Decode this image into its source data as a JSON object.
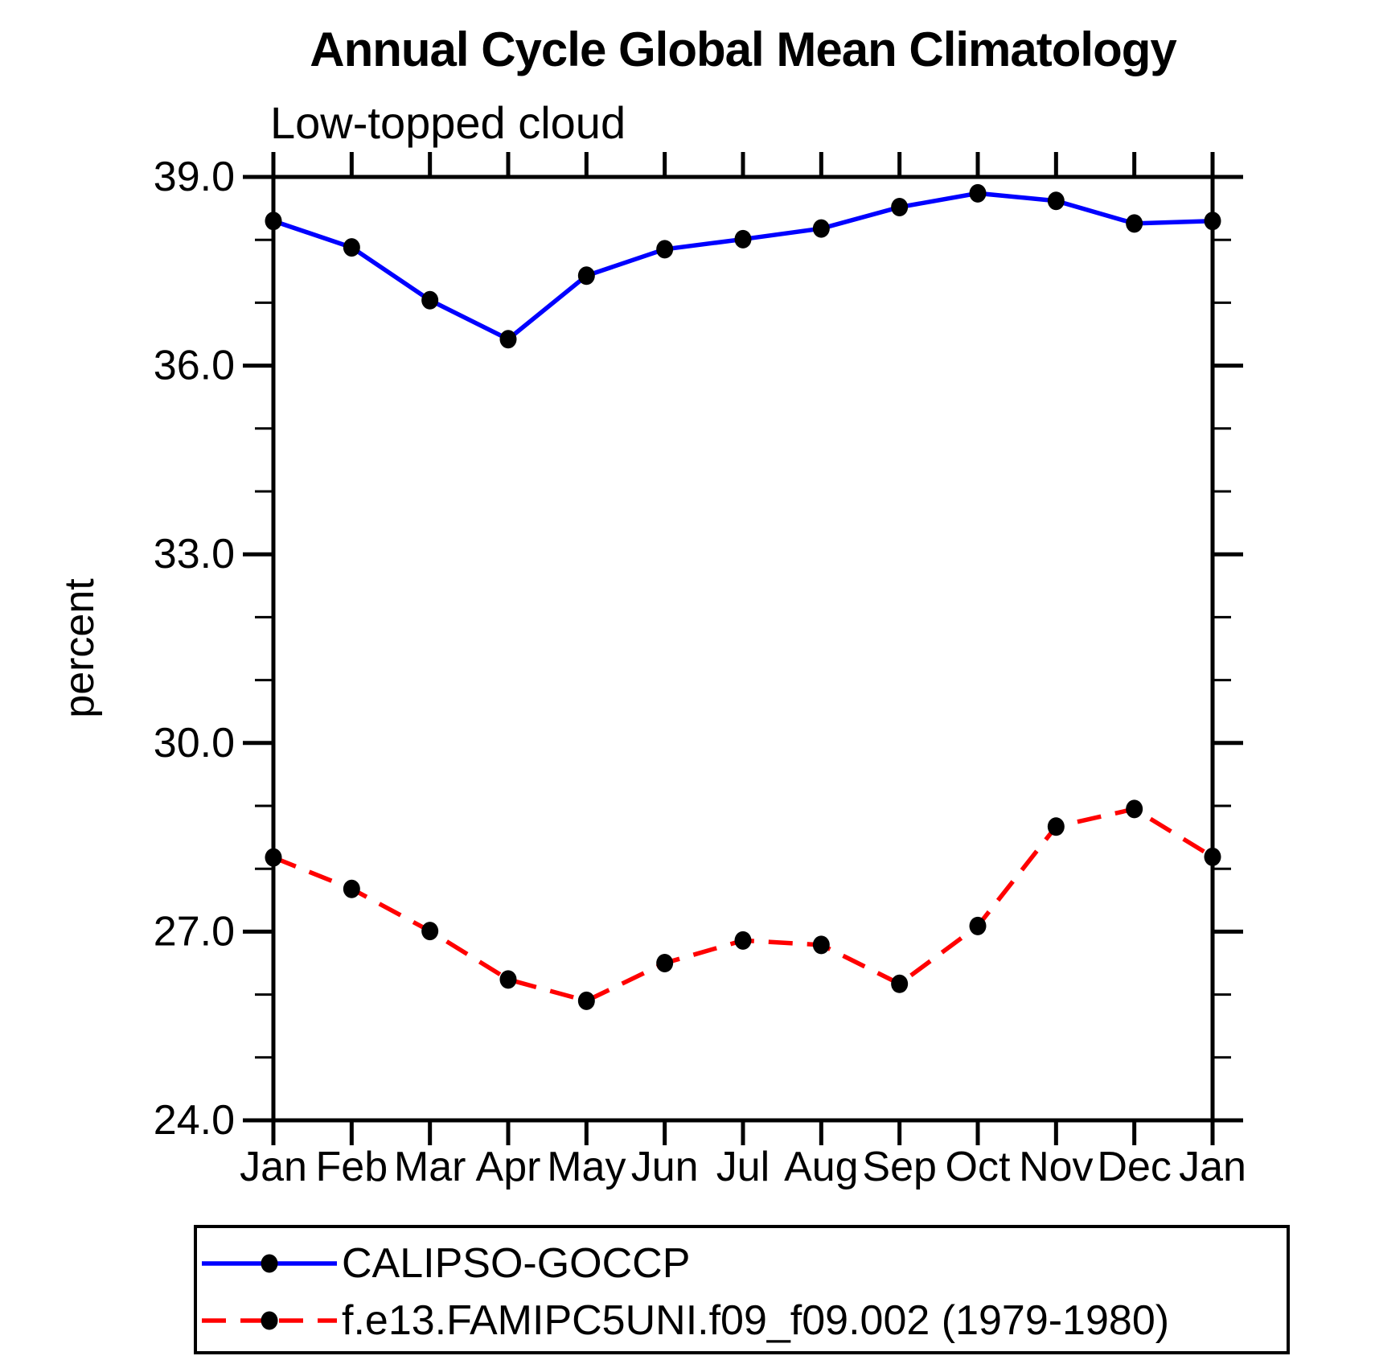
{
  "title": "Annual Cycle Global Mean Climatology",
  "subtitle": "Low-topped cloud",
  "axes": {
    "y_label": "percent",
    "y_tick_labels": [
      "24.0",
      "27.0",
      "30.0",
      "33.0",
      "36.0",
      "39.0"
    ],
    "x_tick_labels": [
      "Jan",
      "Feb",
      "Mar",
      "Apr",
      "May",
      "Jun",
      "Jul",
      "Aug",
      "Sep",
      "Oct",
      "Nov",
      "Dec",
      "Jan"
    ]
  },
  "legend": {
    "entries": [
      {
        "label": "CALIPSO-GOCCP",
        "line_style": "solid",
        "color": "#0000ff",
        "marker": "black-dot"
      },
      {
        "label": "f.e13.FAMIPC5UNI.f09_f09.002 (1979-1980)",
        "line_style": "dashed",
        "color": "#ff0000",
        "marker": "black-dot"
      }
    ]
  },
  "colors": {
    "series1": "#0000ff",
    "series2": "#ff0000",
    "marker": "#000000",
    "axis": "#000000",
    "subtitle_text": "#1a1a1a",
    "background": "#ffffff"
  },
  "chart_data": {
    "type": "line",
    "title": "Annual Cycle Global Mean Climatology",
    "subtitle": "Low-topped cloud",
    "xlabel": "",
    "ylabel": "percent",
    "categories": [
      "Jan",
      "Feb",
      "Mar",
      "Apr",
      "May",
      "Jun",
      "Jul",
      "Aug",
      "Sep",
      "Oct",
      "Nov",
      "Dec",
      "Jan"
    ],
    "series": [
      {
        "name": "CALIPSO-GOCCP",
        "color": "#0000ff",
        "line_style": "solid",
        "marker": "black-dot",
        "values": [
          38.3,
          37.88,
          37.04,
          36.42,
          37.43,
          37.85,
          38.01,
          38.18,
          38.52,
          38.74,
          38.62,
          38.26,
          38.3
        ]
      },
      {
        "name": "f.e13.FAMIPC5UNI.f09_f09.002 (1979-1980)",
        "color": "#ff0000",
        "line_style": "dashed",
        "marker": "black-dot",
        "values": [
          28.18,
          27.68,
          27.01,
          26.24,
          25.9,
          26.5,
          26.86,
          26.79,
          26.17,
          27.09,
          28.67,
          28.95,
          28.19
        ]
      }
    ],
    "ylim": [
      24.0,
      39.0
    ],
    "ytick_major_interval": 3.0,
    "ytick_minor_interval": 1.0,
    "ytick_labels": [
      "24.0",
      "27.0",
      "30.0",
      "33.0",
      "36.0",
      "39.0"
    ],
    "grid": false,
    "tick_direction": "out",
    "legend_position": "bottom-left-box"
  }
}
